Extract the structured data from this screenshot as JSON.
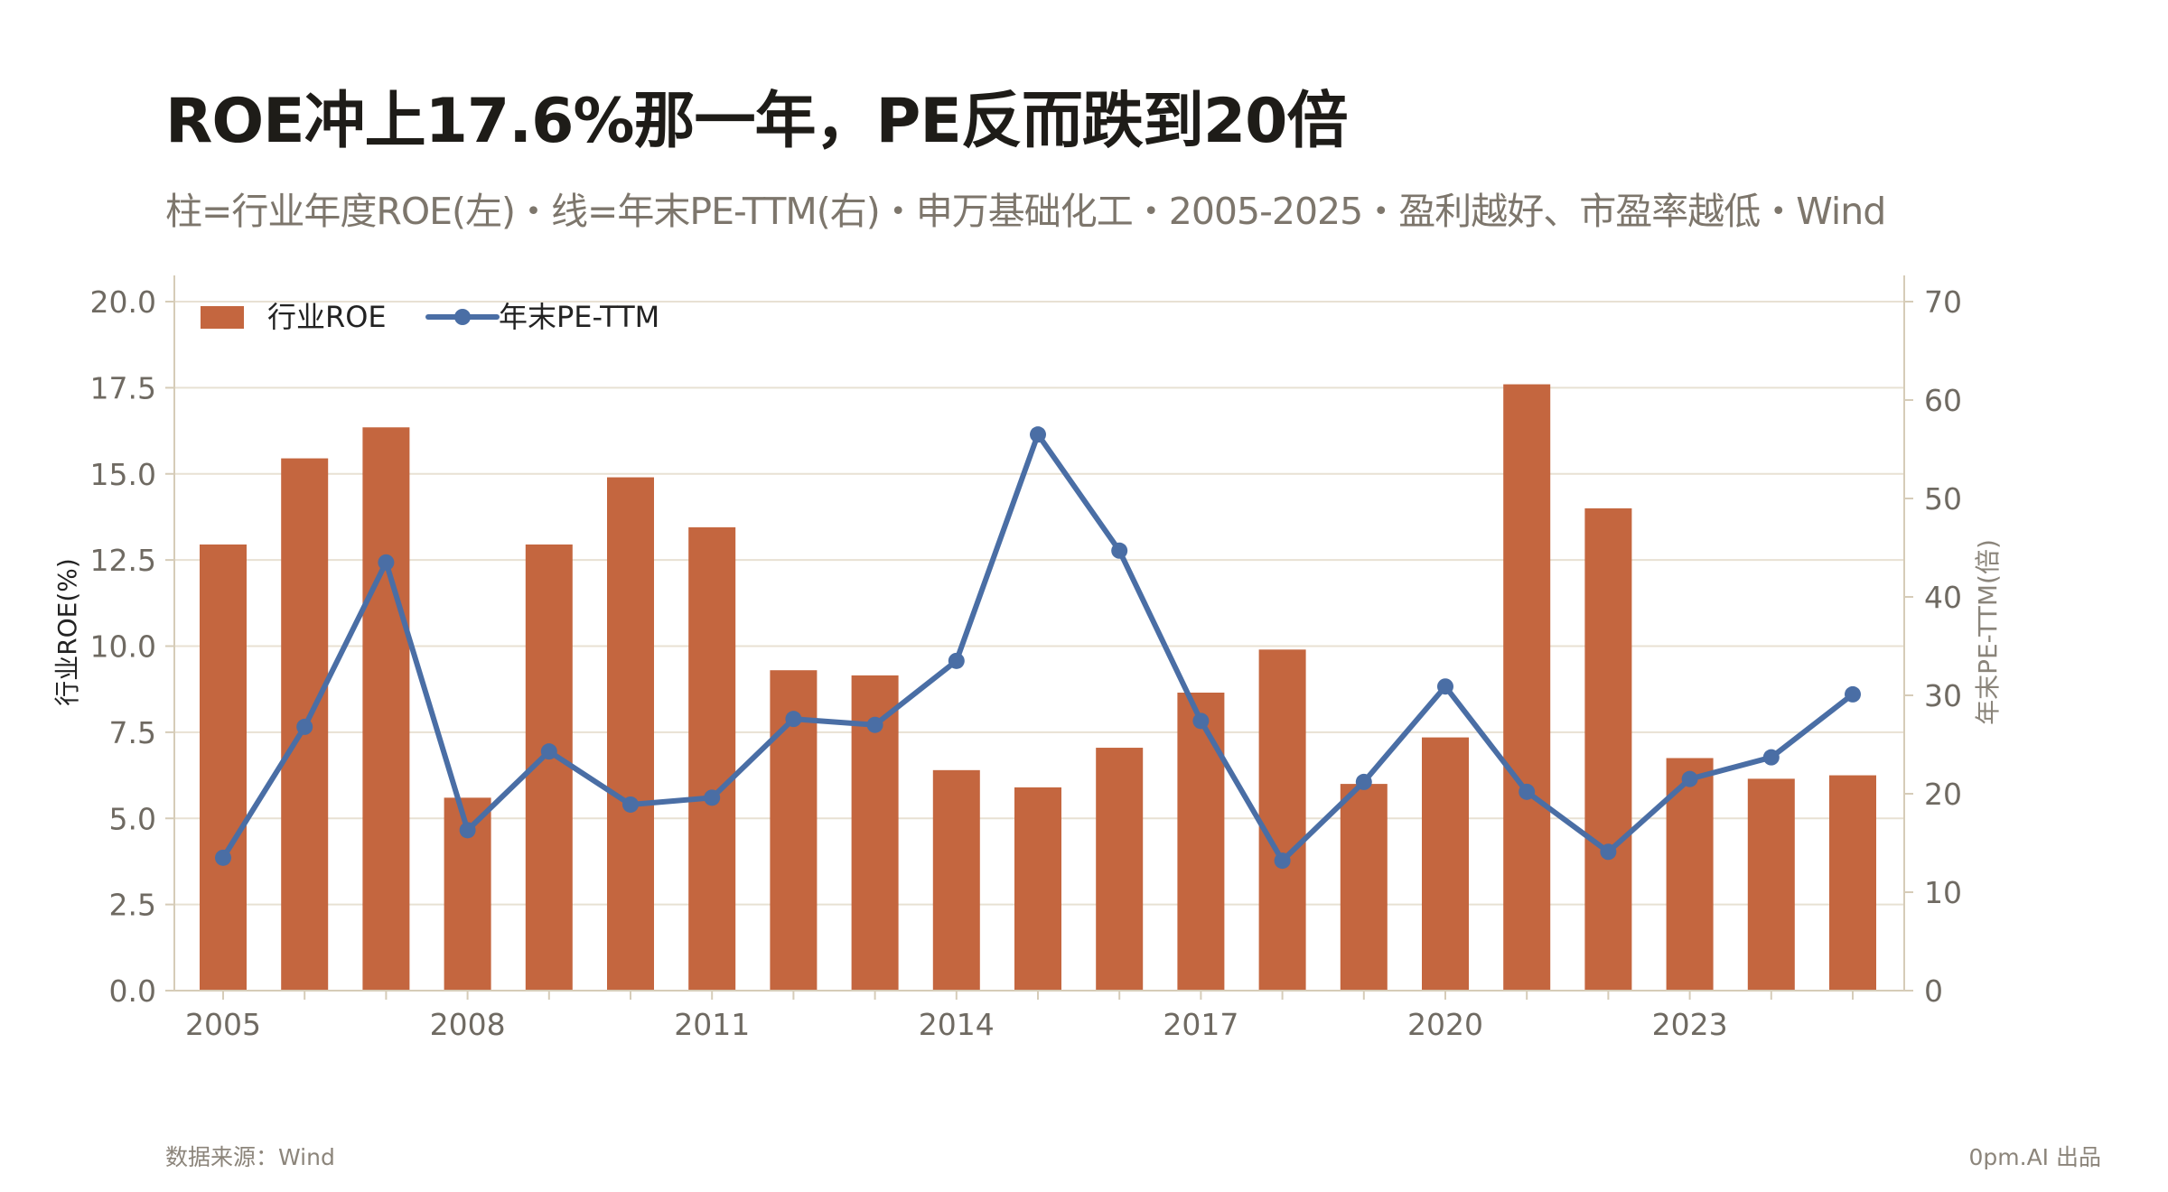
{
  "title": "ROE冲上17.6%那一年，PE反而跌到20倍",
  "subtitle": "柱=行业年度ROE(左)・线=年末PE-TTM(右)・申万基础化工・2005-2025・盈利越好、市盈率越低・Wind",
  "footer": {
    "source": "数据来源：Wind",
    "credit": "0pm.AI 出品"
  },
  "colors": {
    "bar": "#c4663f",
    "line": "#4a6ea5",
    "grid": "#e8e1d3",
    "axis": "#d6ccb8"
  },
  "chart_data": {
    "type": "bar",
    "categories": [
      2005,
      2006,
      2007,
      2008,
      2009,
      2010,
      2011,
      2012,
      2013,
      2014,
      2015,
      2016,
      2017,
      2018,
      2019,
      2020,
      2021,
      2022,
      2023,
      2024,
      2025
    ],
    "x_tick_labels": [
      "2005",
      "2008",
      "2011",
      "2014",
      "2017",
      "2020",
      "2023"
    ],
    "series": [
      {
        "name": "行业ROE",
        "type": "bar",
        "axis": "left",
        "values": [
          12.95,
          15.45,
          16.35,
          5.6,
          12.95,
          14.9,
          13.45,
          9.3,
          9.15,
          6.4,
          5.9,
          7.05,
          8.65,
          9.9,
          6.0,
          7.35,
          17.6,
          14.0,
          6.75,
          6.15,
          6.25
        ]
      },
      {
        "name": "年末PE-TTM",
        "type": "line",
        "axis": "right",
        "values": [
          13.5,
          26.8,
          43.5,
          16.3,
          24.3,
          18.9,
          19.6,
          27.6,
          27.0,
          33.5,
          56.5,
          44.7,
          27.4,
          13.2,
          21.2,
          30.9,
          20.2,
          14.1,
          21.5,
          23.7,
          30.1
        ]
      }
    ],
    "y_left": {
      "label": "行业ROE(%)",
      "ylim": [
        0,
        20
      ],
      "ticks": [
        "0.0",
        "2.5",
        "5.0",
        "7.5",
        "10.0",
        "12.5",
        "15.0",
        "17.5",
        "20.0"
      ]
    },
    "y_right": {
      "label": "年末PE-TTM(倍)",
      "ylim": [
        0,
        70
      ],
      "ticks": [
        "0",
        "10",
        "20",
        "30",
        "40",
        "50",
        "60",
        "70"
      ]
    },
    "grid": true,
    "legend_position": "top-left"
  }
}
